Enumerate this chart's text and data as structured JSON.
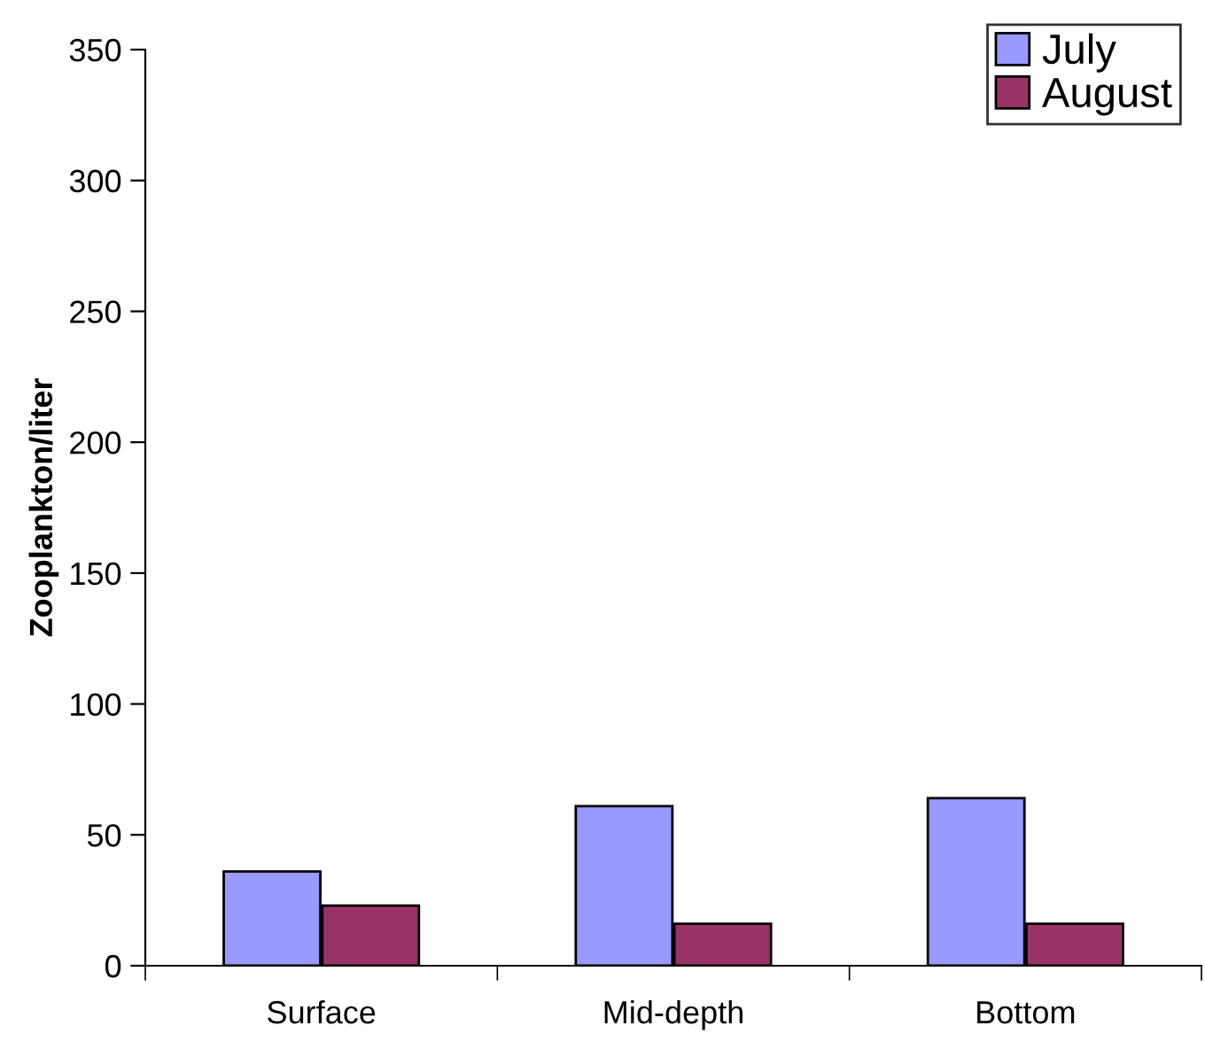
{
  "chart_data": {
    "type": "bar",
    "ylabel": "Zooplankton/liter",
    "categories": [
      "Surface",
      "Mid-depth",
      "Bottom"
    ],
    "series": [
      {
        "name": "July",
        "color": "#9999ff",
        "values": [
          36,
          61,
          64
        ]
      },
      {
        "name": "August",
        "color": "#993366",
        "values": [
          23,
          16,
          16
        ]
      }
    ],
    "ylim": [
      0,
      350
    ],
    "yticks": [
      0,
      50,
      100,
      150,
      200,
      250,
      300,
      350
    ],
    "grid": false,
    "legend": "top right"
  }
}
